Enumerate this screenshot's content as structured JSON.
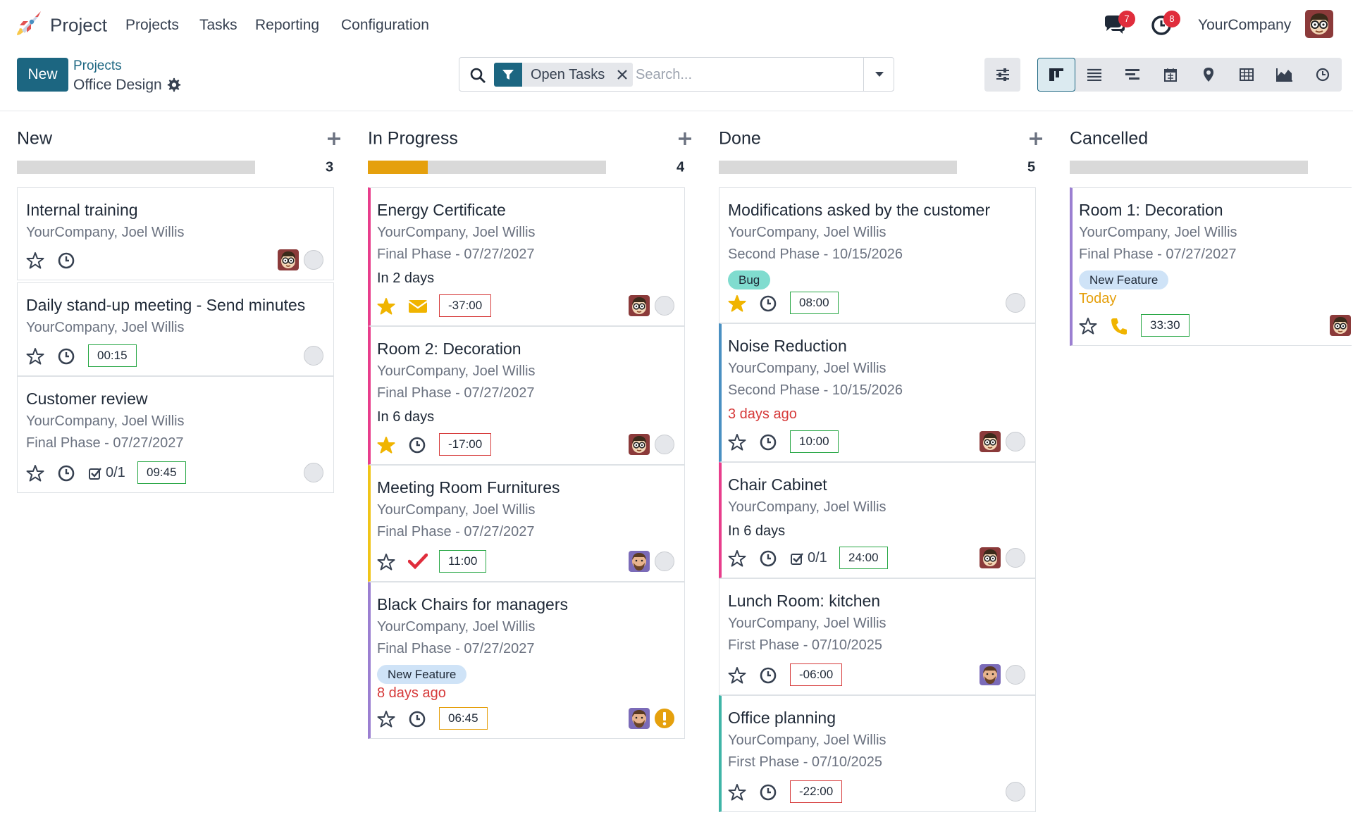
{
  "app": {
    "name": "Project",
    "company": "YourCompany"
  },
  "nav": {
    "items": [
      "Projects",
      "Tasks",
      "Reporting",
      "Configuration"
    ]
  },
  "systray": {
    "messages_count": "7",
    "activities_count": "8"
  },
  "control": {
    "new_label": "New",
    "breadcrumb_parent": "Projects",
    "breadcrumb_current": "Office Design",
    "facet_label": "Open Tasks",
    "search_placeholder": "Search..."
  },
  "colors": {
    "brand": "#1c6681",
    "success": "#28a745",
    "danger": "#d63a3a",
    "warning": "#e5a00d",
    "pink": "#e83e8c",
    "purple": "#9b7fd1",
    "yellow": "#f0c419",
    "blue": "#4a90c2",
    "teal": "#3fb5a7",
    "tag_bug": "#80dccf",
    "tag_feature": "#cfe3f7"
  },
  "view_icons": [
    "kanban-icon",
    "list-icon",
    "gantt-icon",
    "calendar-icon",
    "map-icon",
    "pivot-icon",
    "graph-icon",
    "activity-icon"
  ],
  "columns": [
    {
      "title": "New",
      "count": "3",
      "progress": 0,
      "cards": [
        {
          "title": "Internal training",
          "sub": "YourCompany, Joel Willis",
          "hours": "",
          "state": "normal"
        },
        {
          "title": "Daily stand-up meeting - Send minutes",
          "sub": "YourCompany, Joel Willis",
          "hours": "00:15",
          "state": "normal"
        },
        {
          "title": "Customer review",
          "sub": "YourCompany, Joel Willis",
          "milestone": "Final Phase - 07/27/2027",
          "checklist": "0/1",
          "hours": "09:45",
          "state": "normal"
        }
      ]
    },
    {
      "title": "In Progress",
      "count": "4",
      "progress": 0.25,
      "cards": [
        {
          "title": "Energy Certificate",
          "sub": "YourCompany, Joel Willis",
          "milestone": "Final Phase - 07/27/2027",
          "deadline": "In 2 days",
          "hours": "-37:00",
          "state": "normal"
        },
        {
          "title": "Room 2: Decoration",
          "sub": "YourCompany, Joel Willis",
          "milestone": "Final Phase - 07/27/2027",
          "deadline": "In 6 days",
          "hours": "-17:00",
          "state": "normal"
        },
        {
          "title": "Meeting Room Furnitures",
          "sub": "YourCompany, Joel Willis",
          "milestone": "Final Phase - 07/27/2027",
          "hours": "11:00",
          "state": "normal"
        },
        {
          "title": "Black Chairs for managers",
          "sub": "YourCompany, Joel Willis",
          "milestone": "Final Phase - 07/27/2027",
          "tag": "New Feature",
          "deadline": "8 days ago",
          "hours": "06:45",
          "state": "blocked"
        }
      ]
    },
    {
      "title": "Done",
      "count": "5",
      "progress": 0,
      "cards": [
        {
          "title": "Modifications asked by the customer",
          "sub": "YourCompany, Joel Willis",
          "milestone": "Second Phase - 10/15/2026",
          "tag": "Bug",
          "hours": "08:00",
          "state": "normal"
        },
        {
          "title": "Noise Reduction",
          "sub": "YourCompany, Joel Willis",
          "milestone": "Second Phase - 10/15/2026",
          "deadline": "3 days ago",
          "hours": "10:00",
          "state": "normal"
        },
        {
          "title": "Chair Cabinet",
          "sub": "YourCompany, Joel Willis",
          "deadline": "In 6 days",
          "checklist": "0/1",
          "hours": "24:00",
          "state": "normal"
        },
        {
          "title": "Lunch Room: kitchen",
          "sub": "YourCompany, Joel Willis",
          "milestone": "First Phase - 07/10/2025",
          "hours": "-06:00",
          "state": "normal"
        },
        {
          "title": "Office planning",
          "sub": "YourCompany, Joel Willis",
          "milestone": "First Phase - 07/10/2025",
          "hours": "-22:00",
          "state": "normal"
        }
      ]
    },
    {
      "title": "Cancelled",
      "count": "",
      "progress": 0,
      "cards": [
        {
          "title": "Room 1: Decoration",
          "sub": "YourCompany, Joel Willis",
          "milestone": "Final Phase - 07/27/2027",
          "tag": "New Feature",
          "deadline": "Today",
          "hours": "33:30",
          "state": "normal"
        }
      ]
    }
  ]
}
